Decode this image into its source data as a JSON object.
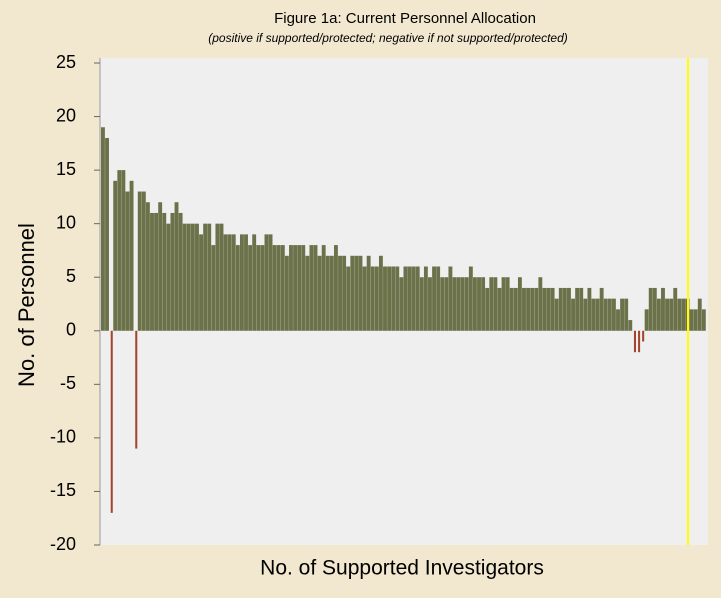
{
  "chart_data": {
    "type": "bar",
    "title": "Figure 1a:  Current  Personnel Allocation",
    "subtitle": "(positive if supported/protected; negative if not supported/protected)",
    "ylabel": "No. of Personnel",
    "xlabel": "No. of Supported Investigators",
    "color": "#6b7149",
    "negative_color": "#a2452e",
    "ylim": [
      -20,
      25
    ],
    "yticks": [
      -20,
      -15,
      -10,
      -5,
      0,
      5,
      10,
      15,
      20,
      25
    ],
    "categories": [
      null,
      null,
      null,
      null,
      null,
      null,
      null,
      null,
      null,
      null,
      null,
      null,
      null,
      null,
      null,
      null,
      null,
      null,
      null,
      null,
      null,
      null,
      null,
      null,
      null,
      null,
      null,
      null,
      null,
      null,
      null,
      null,
      null,
      null,
      null,
      null,
      null,
      null,
      null,
      null,
      null,
      null,
      null,
      null,
      null,
      null,
      null,
      null,
      null,
      null,
      null,
      null,
      null,
      null,
      null,
      null,
      null,
      null,
      null,
      null,
      null,
      null,
      null,
      null,
      null,
      null,
      null,
      null,
      null,
      null,
      null,
      null,
      null,
      null,
      null,
      null,
      null,
      null,
      null,
      null,
      null,
      null,
      null,
      null,
      null,
      null,
      null,
      null,
      null,
      null,
      null,
      null,
      null,
      null,
      null,
      null,
      null,
      null,
      null,
      null,
      null,
      null,
      null,
      null,
      null,
      null,
      null,
      null,
      null,
      null,
      null,
      null,
      null,
      null,
      null,
      null,
      null,
      null,
      null,
      null,
      null,
      null,
      null,
      null,
      null,
      null,
      null,
      null,
      null,
      null,
      null,
      null,
      null,
      null,
      null,
      null,
      null,
      null,
      null,
      null,
      null,
      null,
      null,
      null,
      null,
      null,
      null,
      null
    ],
    "values": [
      19,
      18,
      -17,
      14,
      15,
      15,
      13,
      14,
      -11,
      13,
      13,
      12,
      11,
      11,
      12,
      11,
      10,
      11,
      12,
      11,
      10,
      10,
      10,
      10,
      9,
      10,
      10,
      8,
      10,
      10,
      9,
      9,
      9,
      8,
      9,
      9,
      8,
      9,
      8,
      8,
      9,
      9,
      8,
      8,
      8,
      7,
      8,
      8,
      8,
      8,
      7,
      8,
      8,
      7,
      8,
      7,
      7,
      8,
      7,
      7,
      6,
      7,
      7,
      7,
      6,
      7,
      6,
      6,
      7,
      6,
      6,
      6,
      6,
      5,
      6,
      6,
      6,
      6,
      5,
      6,
      5,
      6,
      6,
      5,
      5,
      6,
      5,
      5,
      5,
      5,
      6,
      5,
      5,
      5,
      4,
      5,
      5,
      4,
      5,
      5,
      4,
      4,
      5,
      4,
      4,
      4,
      4,
      5,
      4,
      4,
      4,
      3,
      4,
      4,
      4,
      3,
      4,
      4,
      3,
      4,
      3,
      3,
      4,
      3,
      3,
      3,
      2,
      3,
      3,
      1,
      -2,
      -2,
      -1,
      2,
      4,
      4,
      3,
      4,
      3,
      3,
      4,
      3,
      3,
      3,
      2,
      2,
      3,
      2
    ]
  }
}
